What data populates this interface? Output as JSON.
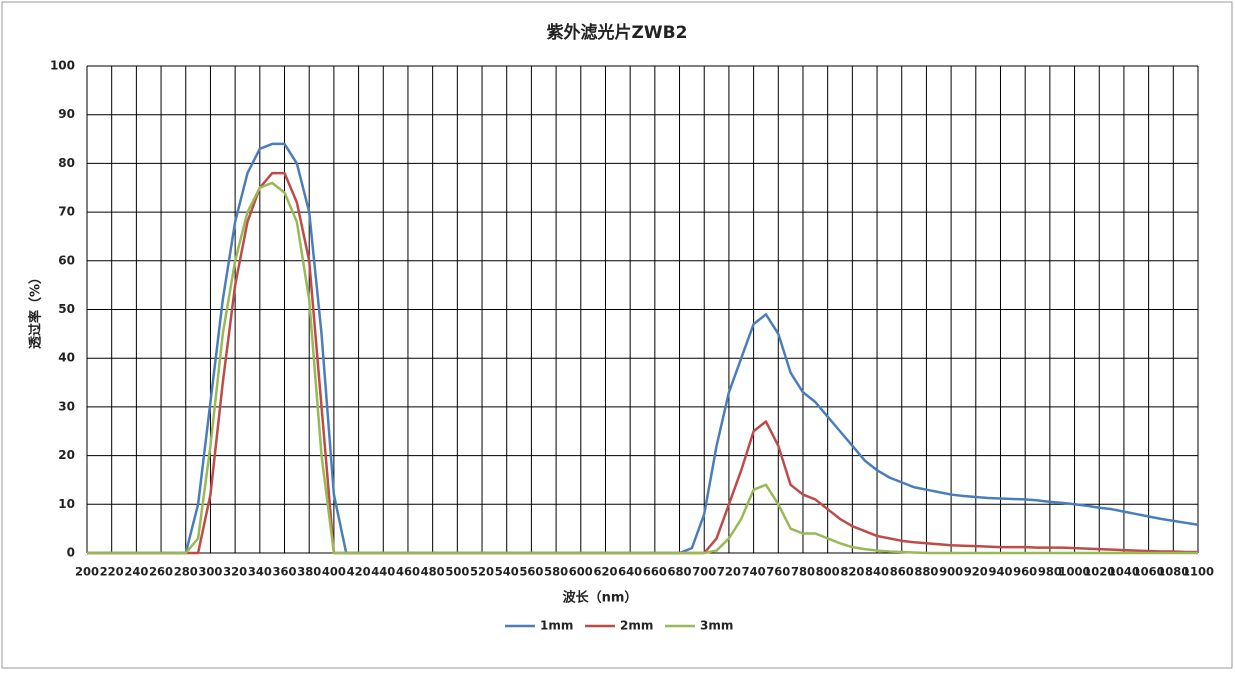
{
  "chart_data": {
    "type": "line",
    "title": "紫外滤光片ZWB2",
    "x_label": "波长（nm）",
    "y_label": "透过率（%）",
    "x": [
      200,
      210,
      220,
      230,
      240,
      250,
      260,
      270,
      280,
      290,
      300,
      310,
      320,
      330,
      340,
      350,
      360,
      370,
      380,
      390,
      400,
      410,
      420,
      430,
      440,
      450,
      460,
      470,
      480,
      490,
      500,
      510,
      520,
      530,
      540,
      550,
      560,
      570,
      580,
      590,
      600,
      610,
      620,
      630,
      640,
      650,
      660,
      670,
      680,
      690,
      700,
      710,
      720,
      730,
      740,
      750,
      760,
      770,
      780,
      790,
      800,
      810,
      820,
      830,
      840,
      850,
      860,
      870,
      880,
      890,
      900,
      910,
      920,
      930,
      940,
      950,
      960,
      970,
      980,
      990,
      1000,
      1010,
      1020,
      1030,
      1040,
      1050,
      1060,
      1070,
      1080,
      1090,
      1100
    ],
    "series": [
      {
        "name": "1mm",
        "color": "#4a7ebb",
        "values": [
          0,
          0,
          0,
          0,
          0,
          0,
          0,
          0,
          0,
          10,
          31,
          52,
          68,
          78,
          83,
          84,
          84,
          80,
          70,
          45,
          12,
          0,
          0,
          0,
          0,
          0,
          0,
          0,
          0,
          0,
          0,
          0,
          0,
          0,
          0,
          0,
          0,
          0,
          0,
          0,
          0,
          0,
          0,
          0,
          0,
          0,
          0,
          0,
          0,
          1,
          8,
          22,
          33,
          40,
          47,
          49,
          45,
          37,
          33,
          31,
          28,
          25,
          22,
          19,
          17,
          15.5,
          14.5,
          13.5,
          13,
          12.5,
          12,
          11.7,
          11.5,
          11.3,
          11.2,
          11.1,
          11,
          10.8,
          10.5,
          10.3,
          10,
          9.7,
          9.3,
          9,
          8.5,
          8,
          7.5,
          7,
          6.6,
          6.2,
          5.8
        ]
      },
      {
        "name": "2mm",
        "color": "#be4b48",
        "values": [
          0,
          0,
          0,
          0,
          0,
          0,
          0,
          0,
          0,
          0,
          12,
          35,
          55,
          68,
          75,
          78,
          78,
          72,
          60,
          30,
          0,
          0,
          0,
          0,
          0,
          0,
          0,
          0,
          0,
          0,
          0,
          0,
          0,
          0,
          0,
          0,
          0,
          0,
          0,
          0,
          0,
          0,
          0,
          0,
          0,
          0,
          0,
          0,
          0,
          0,
          0,
          3,
          10,
          17,
          25,
          27,
          22,
          14,
          12,
          11,
          9,
          7,
          5.5,
          4.5,
          3.5,
          3,
          2.5,
          2.2,
          2,
          1.8,
          1.6,
          1.5,
          1.4,
          1.3,
          1.2,
          1.2,
          1.2,
          1.1,
          1.1,
          1.1,
          1,
          0.9,
          0.8,
          0.7,
          0.6,
          0.5,
          0.4,
          0.3,
          0.3,
          0.2,
          0.2
        ]
      },
      {
        "name": "3mm",
        "color": "#98b954",
        "values": [
          0,
          0,
          0,
          0,
          0,
          0,
          0,
          0,
          0,
          3,
          22,
          45,
          60,
          70,
          75,
          76,
          74,
          68,
          52,
          20,
          0,
          0,
          0,
          0,
          0,
          0,
          0,
          0,
          0,
          0,
          0,
          0,
          0,
          0,
          0,
          0,
          0,
          0,
          0,
          0,
          0,
          0,
          0,
          0,
          0,
          0,
          0,
          0,
          0,
          0,
          0,
          0.5,
          3,
          7,
          13,
          14,
          10,
          5,
          4,
          4,
          3,
          2,
          1.2,
          0.8,
          0.5,
          0.3,
          0.2,
          0.1,
          0,
          0,
          0,
          0,
          0,
          0,
          0,
          0,
          0,
          0,
          0,
          0,
          0,
          0,
          0,
          0,
          0,
          0,
          0,
          0,
          0,
          0,
          0
        ]
      }
    ],
    "xlim": [
      200,
      1100
    ],
    "xticks": [
      200,
      220,
      240,
      260,
      280,
      300,
      320,
      340,
      360,
      380,
      400,
      420,
      440,
      460,
      480,
      500,
      520,
      540,
      560,
      580,
      600,
      620,
      640,
      660,
      680,
      700,
      720,
      740,
      760,
      780,
      800,
      820,
      840,
      860,
      880,
      900,
      920,
      940,
      960,
      980,
      1000,
      1020,
      1040,
      1060,
      1080,
      1100
    ],
    "ylim": [
      0,
      100
    ],
    "yticks": [
      0,
      10,
      20,
      30,
      40,
      50,
      60,
      70,
      80,
      90,
      100
    ],
    "grid": true,
    "legend": "bottom"
  }
}
